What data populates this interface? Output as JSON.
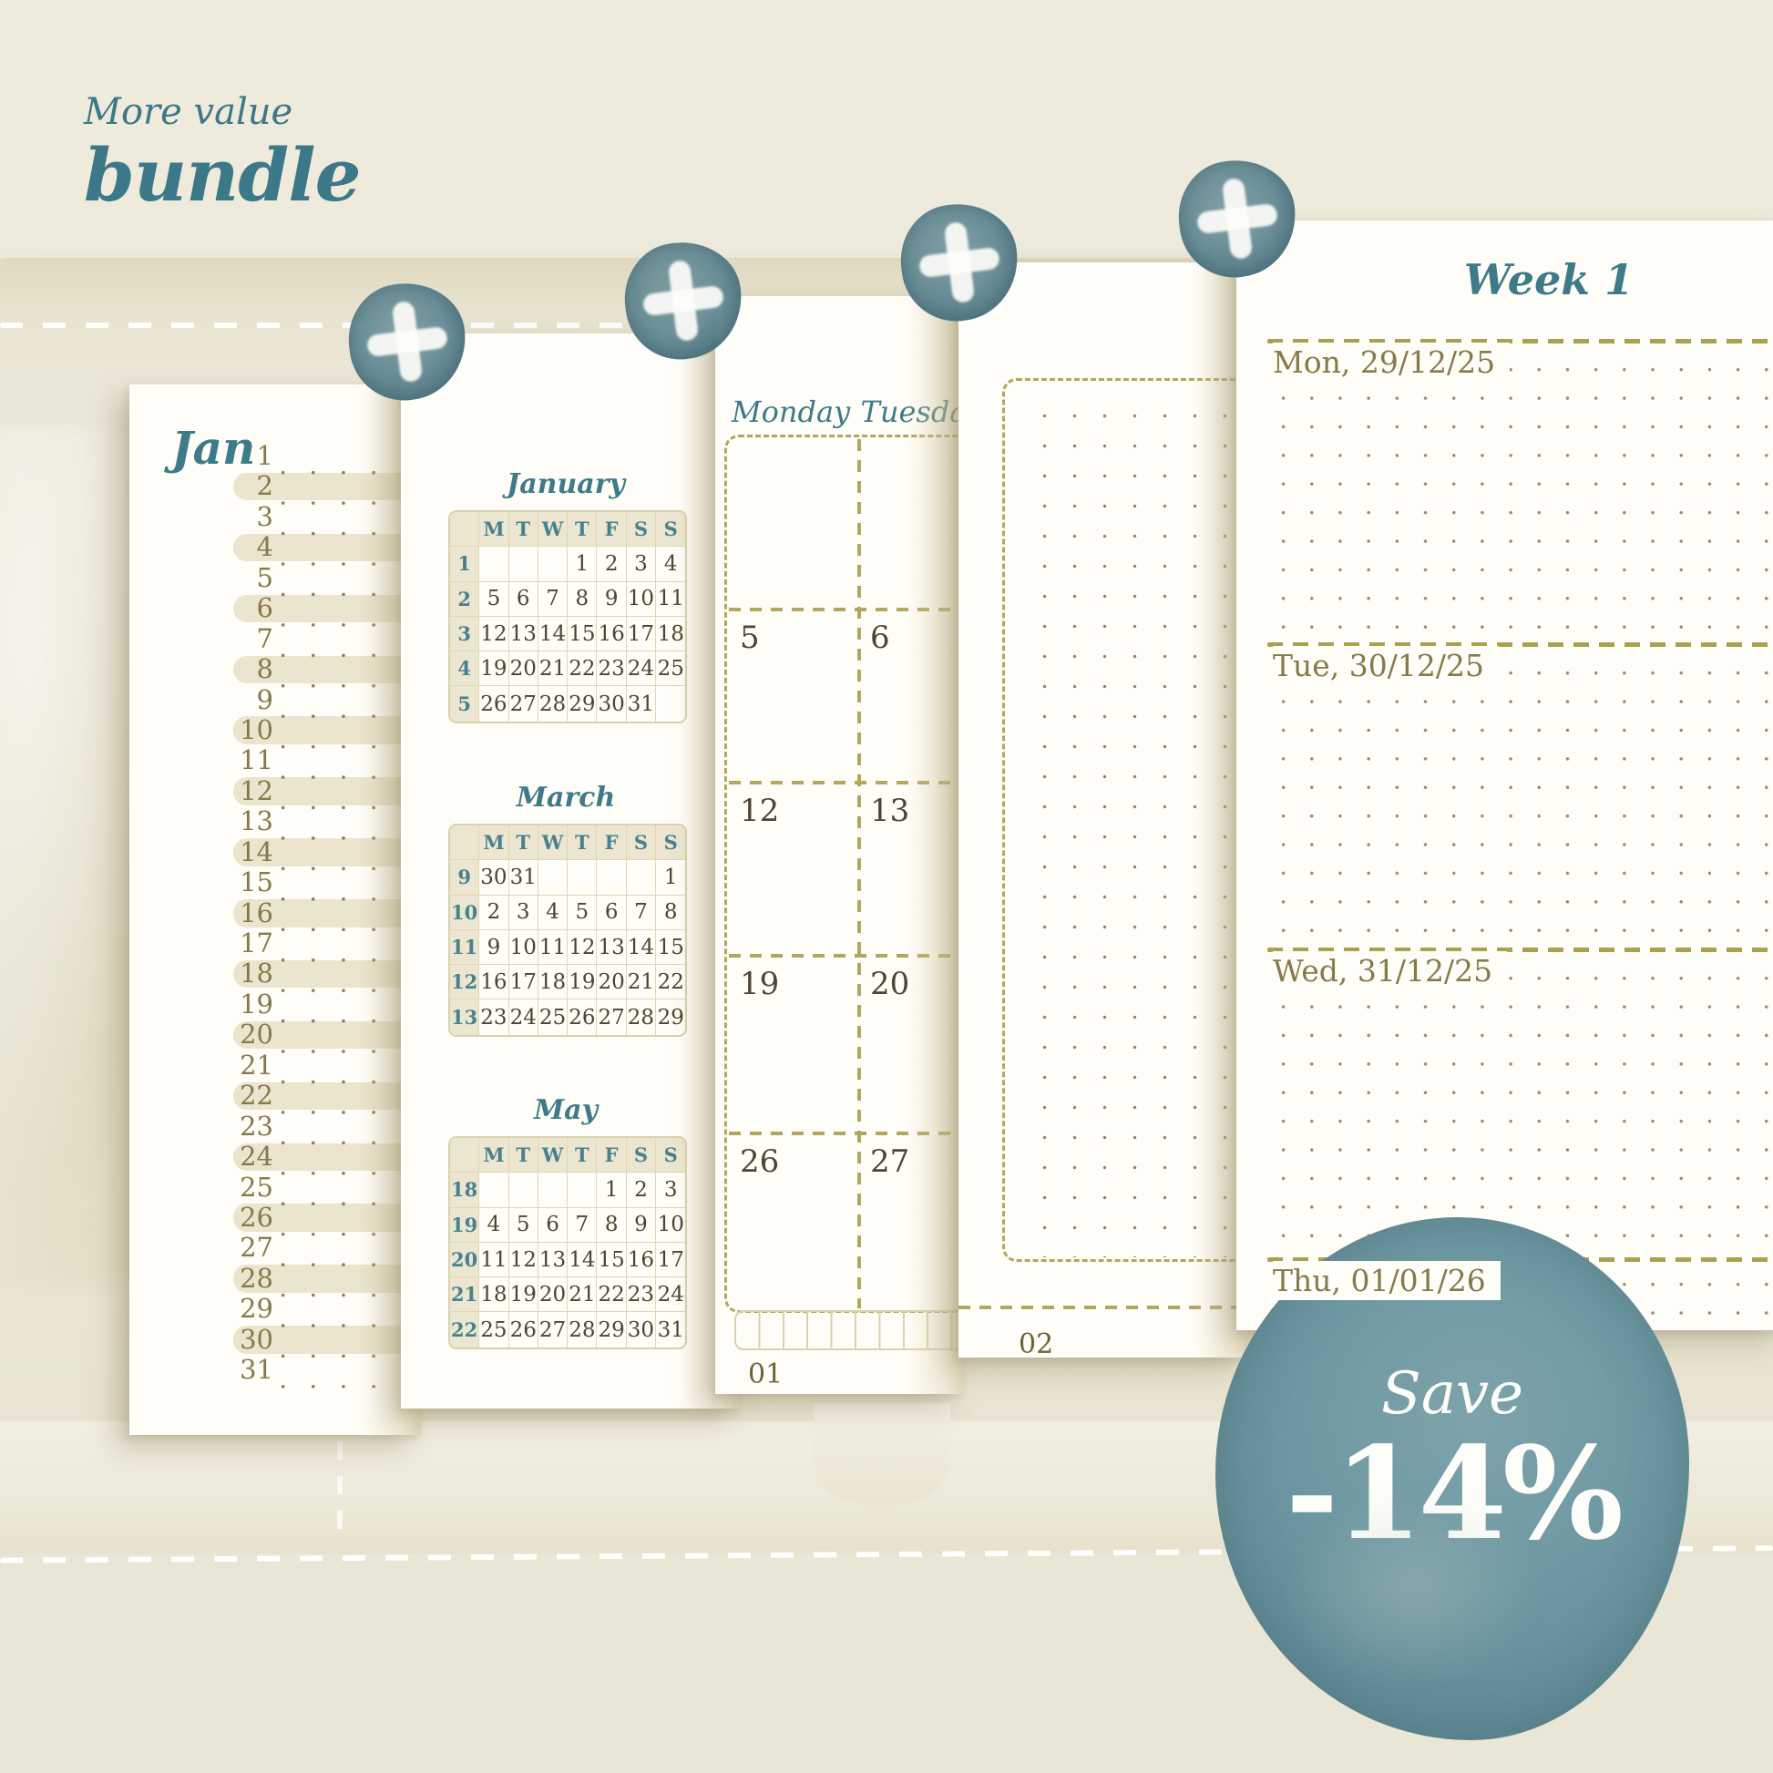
{
  "header": {
    "eyebrow": "More value",
    "title": "bundle"
  },
  "colors": {
    "accent_teal": "#3e7b88",
    "weekday_teal": "#47818e",
    "olive_text": "#86794a",
    "khaki_dash": "#b2a75c",
    "day_number": "#4e4434",
    "watercolor_teal": "#6f99a2",
    "paper": "#fffdf7",
    "background_cream": "#eeebdc",
    "pill_beige": "#ebe4ce"
  },
  "decorations": {
    "plus_badge_count": 4,
    "plus_icon": "+"
  },
  "page_daily_list": {
    "month_label": "Jan",
    "day_count": 31
  },
  "page_mini_calendars": {
    "months": [
      {
        "name": "January",
        "day_headers": [
          "M",
          "T",
          "W",
          "T",
          "F",
          "S",
          "S"
        ],
        "week_numbers": [
          "1",
          "2",
          "3",
          "4",
          "5"
        ],
        "weeks": [
          [
            "",
            "",
            "",
            "1",
            "2",
            "3",
            "4"
          ],
          [
            "5",
            "6",
            "7",
            "8",
            "9",
            "10",
            "11"
          ],
          [
            "12",
            "13",
            "14",
            "15",
            "16",
            "17",
            "18"
          ],
          [
            "19",
            "20",
            "21",
            "22",
            "23",
            "24",
            "25"
          ],
          [
            "26",
            "27",
            "28",
            "29",
            "30",
            "31",
            ""
          ]
        ]
      },
      {
        "name": "March",
        "day_headers": [
          "M",
          "T",
          "W",
          "T",
          "F",
          "S",
          "S"
        ],
        "week_numbers": [
          "9",
          "10",
          "11",
          "12",
          "13"
        ],
        "weeks": [
          [
            "30",
            "31",
            "",
            "",
            "",
            "",
            "1"
          ],
          [
            "2",
            "3",
            "4",
            "5",
            "6",
            "7",
            "8"
          ],
          [
            "9",
            "10",
            "11",
            "12",
            "13",
            "14",
            "15"
          ],
          [
            "16",
            "17",
            "18",
            "19",
            "20",
            "21",
            "22"
          ],
          [
            "23",
            "24",
            "25",
            "26",
            "27",
            "28",
            "29"
          ]
        ]
      },
      {
        "name": "May",
        "day_headers": [
          "M",
          "T",
          "W",
          "T",
          "F",
          "S",
          "S"
        ],
        "week_numbers": [
          "18",
          "19",
          "20",
          "21",
          "22"
        ],
        "weeks": [
          [
            "",
            "",
            "",
            "",
            "1",
            "2",
            "3"
          ],
          [
            "4",
            "5",
            "6",
            "7",
            "8",
            "9",
            "10"
          ],
          [
            "11",
            "12",
            "13",
            "14",
            "15",
            "16",
            "17"
          ],
          [
            "18",
            "19",
            "20",
            "21",
            "22",
            "23",
            "24"
          ],
          [
            "25",
            "26",
            "27",
            "28",
            "29",
            "30",
            "31"
          ]
        ]
      }
    ]
  },
  "page_monthly": {
    "day_headers": [
      "Monday",
      "Tuesday"
    ],
    "cells": [
      [
        "",
        ""
      ],
      [
        "5",
        "6"
      ],
      [
        "12",
        "13"
      ],
      [
        "19",
        "20"
      ],
      [
        "26",
        "27"
      ]
    ],
    "page_number": "01"
  },
  "page_dot_grid": {
    "page_number": "02"
  },
  "page_weekly": {
    "title": "Week 1",
    "day_labels": [
      "Mon, 29/12/25",
      "Tue, 30/12/25",
      "Wed, 31/12/25",
      "Thu, 01/01/26"
    ]
  },
  "save_badge": {
    "label": "Save",
    "discount": "-14%"
  }
}
